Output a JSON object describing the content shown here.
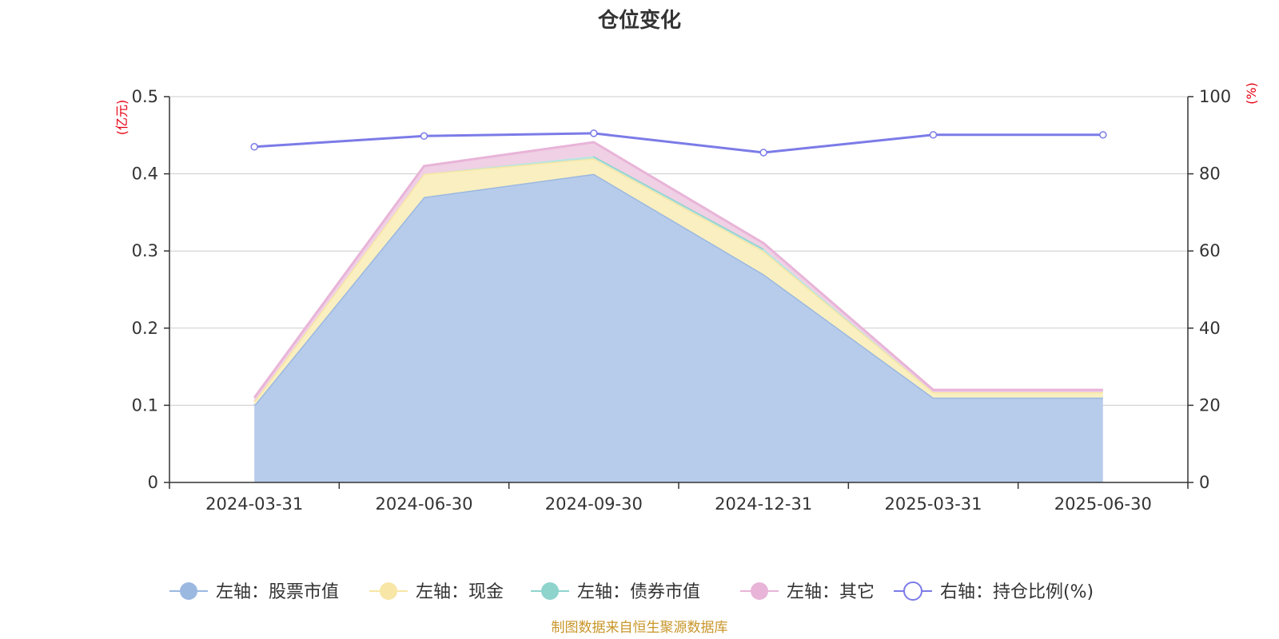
{
  "chart_data": {
    "type": "area",
    "title": "仓位变化",
    "categories": [
      "2024-03-31",
      "2024-06-30",
      "2024-09-30",
      "2024-12-31",
      "2025-03-31",
      "2025-06-30"
    ],
    "left_axis": {
      "unit": "(亿元)",
      "ylim": [
        0,
        0.5
      ],
      "ticks": [
        "0",
        "0.1",
        "0.2",
        "0.3",
        "0.4",
        "0.5"
      ]
    },
    "right_axis": {
      "unit": "(%)",
      "ylim": [
        0,
        100
      ],
      "ticks": [
        "0",
        "20",
        "40",
        "60",
        "80",
        "100"
      ]
    },
    "stacked": true,
    "grid": true,
    "legend_position": "bottom",
    "series": [
      {
        "name": "左轴：股票市值",
        "axis": "left",
        "kind": "area",
        "color": "#9bb8e0",
        "fill": "#b7cceb",
        "values": [
          0.1,
          0.37,
          0.4,
          0.27,
          0.11,
          0.11
        ]
      },
      {
        "name": "左轴：现金",
        "axis": "left",
        "kind": "area",
        "color": "#f7e6a6",
        "fill": "#faefc0",
        "values": [
          0.005,
          0.03,
          0.02,
          0.03,
          0.007,
          0.007
        ]
      },
      {
        "name": "左轴：债券市值",
        "axis": "left",
        "kind": "area",
        "color": "#8fd3cd",
        "fill": "#b9e4e0",
        "values": [
          0,
          0,
          0.003,
          0.003,
          0,
          0
        ]
      },
      {
        "name": "左轴：其它",
        "axis": "left",
        "kind": "area",
        "color": "#e8b4d8",
        "fill": "#f0d0e4",
        "values": [
          0.005,
          0.01,
          0.018,
          0.007,
          0.003,
          0.003
        ]
      },
      {
        "name": "右轴：持仓比例(%)",
        "axis": "right",
        "kind": "line",
        "color": "#7b7be8",
        "values": [
          87,
          89.8,
          90.5,
          85.5,
          90.1,
          90.1
        ]
      }
    ]
  },
  "source": "制图数据来自恒生聚源数据库"
}
